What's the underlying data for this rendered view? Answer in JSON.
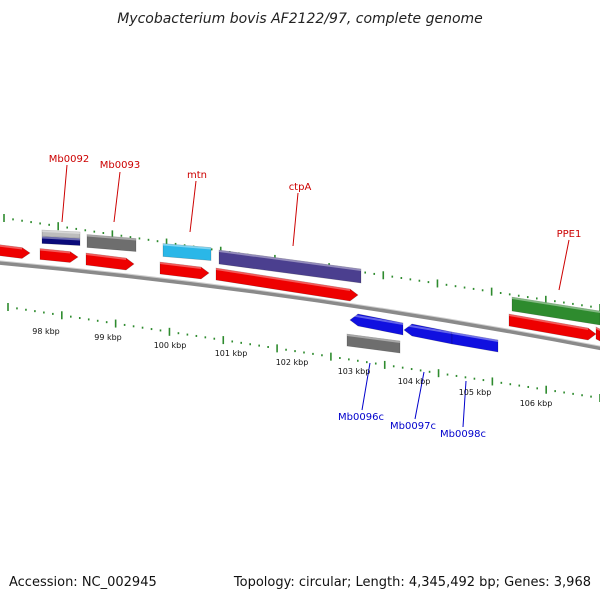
{
  "title": "Mycobacterium bovis AF2122/97, complete genome",
  "footer": {
    "accession": "Accession: NC_002945",
    "topology": "Topology: circular; Length: 4,345,492 bp; Genes: 3,968"
  },
  "colors": {
    "backbone": "#8a8a8a",
    "ticks": "#2e8b2e",
    "cds": "#ee0000",
    "forward_label": "#cc0000",
    "reverse_label": "#0000cc"
  },
  "scale_labels": [
    "98 kbp",
    "99 kbp",
    "100 kbp",
    "101 kbp",
    "102 kbp",
    "103 kbp",
    "104 kbp",
    "105 kbp",
    "106 kbp"
  ],
  "features": [
    {
      "name": "Mb0092",
      "strand": "forward",
      "color": "#0a0a7a",
      "color2": "#bdbdbd"
    },
    {
      "name": "Mb0093",
      "strand": "forward",
      "color": "#6e6e6e"
    },
    {
      "name": "mtn",
      "strand": "forward",
      "color": "#2ab7e8"
    },
    {
      "name": "ctpA",
      "strand": "forward",
      "color": "#4b3f8f"
    },
    {
      "name": "PPE1",
      "strand": "forward",
      "color": "#2e8b2e"
    },
    {
      "name": "Mb0096c",
      "strand": "reverse",
      "color": "#1010e0"
    },
    {
      "name": "Mb0097c",
      "strand": "reverse",
      "color": "#1010e0"
    },
    {
      "name": "Mb0098c",
      "strand": "reverse",
      "color": "#1010e0"
    }
  ]
}
